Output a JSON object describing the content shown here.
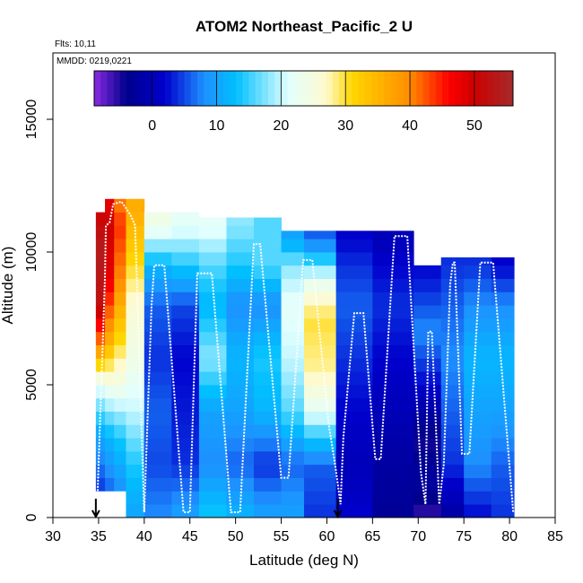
{
  "chart_data": {
    "type": "heatmap",
    "title": "ATOM2 Northeast_Pacific_2 U",
    "flights_label": "Flts: 10,11",
    "dates_label": "MMDD: 0219,0221",
    "xlabel": "Latitude (deg N)",
    "ylabel": "Altitude (m)",
    "xlim": [
      30,
      85
    ],
    "ylim": [
      0,
      17500
    ],
    "xticks": [
      30,
      35,
      40,
      45,
      50,
      55,
      60,
      65,
      70,
      75,
      80,
      85
    ],
    "yticks": [
      0,
      5000,
      10000,
      15000
    ],
    "colorbar": {
      "range": [
        -9,
        56
      ],
      "ticks": [
        0,
        10,
        20,
        30,
        40,
        50
      ],
      "colors": [
        "#8a2be2",
        "#00008b",
        "#0000cd",
        "#1e90ff",
        "#00bfff",
        "#e0ffff",
        "#fffacd",
        "#ffd700",
        "#ff8c00",
        "#ff0000",
        "#cd0000",
        "#a52a2a"
      ],
      "stops": [
        -9,
        -4,
        2,
        8,
        13,
        21,
        27,
        31,
        40,
        46,
        50,
        56
      ]
    },
    "arrows_latitude": [
      34.7,
      61.2
    ],
    "columns": [
      {
        "lat": [
          34.7,
          35.7
        ],
        "alt": [
          1000,
          11500
        ],
        "key": [
          [
            1000,
            4
          ],
          [
            3000,
            10
          ],
          [
            5000,
            22
          ],
          [
            6500,
            40
          ],
          [
            8000,
            52
          ],
          [
            10000,
            54
          ],
          [
            11500,
            50
          ]
        ]
      },
      {
        "lat": [
          35.7,
          36.7
        ],
        "alt": [
          1000,
          12000
        ],
        "key": [
          [
            1000,
            6
          ],
          [
            3000,
            12
          ],
          [
            5000,
            24
          ],
          [
            7000,
            38
          ],
          [
            9000,
            48
          ],
          [
            11000,
            50
          ],
          [
            12000,
            48
          ]
        ]
      },
      {
        "lat": [
          36.7,
          38.0
        ],
        "alt": [
          1000,
          12000
        ],
        "key": [
          [
            1000,
            8
          ],
          [
            3000,
            14
          ],
          [
            5000,
            24
          ],
          [
            7000,
            32
          ],
          [
            9000,
            40
          ],
          [
            11000,
            44
          ],
          [
            12000,
            40
          ]
        ]
      },
      {
        "lat": [
          38.0,
          40.0
        ],
        "alt": [
          0,
          12000
        ],
        "key": [
          [
            0,
            10
          ],
          [
            2000,
            14
          ],
          [
            4000,
            20
          ],
          [
            6000,
            24
          ],
          [
            8000,
            26
          ],
          [
            10000,
            32
          ],
          [
            11500,
            36
          ]
        ]
      },
      {
        "lat": [
          40.0,
          43.0
        ],
        "alt": [
          0,
          11500
        ],
        "key": [
          [
            0,
            8
          ],
          [
            2000,
            5
          ],
          [
            4000,
            6
          ],
          [
            6000,
            4
          ],
          [
            8000,
            6
          ],
          [
            9500,
            12
          ],
          [
            11000,
            24
          ]
        ]
      },
      {
        "lat": [
          43.0,
          46.0
        ],
        "alt": [
          0,
          11500
        ],
        "key": [
          [
            0,
            10
          ],
          [
            2000,
            4
          ],
          [
            4000,
            3
          ],
          [
            6000,
            2
          ],
          [
            8000,
            5
          ],
          [
            9500,
            14
          ],
          [
            11000,
            22
          ]
        ]
      },
      {
        "lat": [
          46.0,
          49.0
        ],
        "alt": [
          0,
          11300
        ],
        "key": [
          [
            0,
            14
          ],
          [
            2000,
            8
          ],
          [
            4000,
            10
          ],
          [
            6000,
            18
          ],
          [
            8000,
            12
          ],
          [
            9500,
            16
          ],
          [
            11000,
            22
          ]
        ]
      },
      {
        "lat": [
          49.0,
          52.0
        ],
        "alt": [
          0,
          11300
        ],
        "key": [
          [
            0,
            12
          ],
          [
            2000,
            6
          ],
          [
            4000,
            10
          ],
          [
            6000,
            12
          ],
          [
            8000,
            8
          ],
          [
            9500,
            14
          ],
          [
            11000,
            18
          ]
        ]
      },
      {
        "lat": [
          52.0,
          55.0
        ],
        "alt": [
          0,
          11300
        ],
        "key": [
          [
            0,
            10
          ],
          [
            2000,
            4
          ],
          [
            4000,
            12
          ],
          [
            6000,
            14
          ],
          [
            8000,
            8
          ],
          [
            9500,
            16
          ],
          [
            11000,
            16
          ]
        ]
      },
      {
        "lat": [
          55.0,
          57.5
        ],
        "alt": [
          0,
          10800
        ],
        "key": [
          [
            0,
            10
          ],
          [
            2000,
            6
          ],
          [
            4000,
            16
          ],
          [
            6000,
            20
          ],
          [
            8000,
            22
          ],
          [
            9500,
            18
          ],
          [
            10500,
            10
          ]
        ]
      },
      {
        "lat": [
          57.5,
          61.0
        ],
        "alt": [
          0,
          10800
        ],
        "key": [
          [
            0,
            4
          ],
          [
            2000,
            6
          ],
          [
            4000,
            22
          ],
          [
            5500,
            28
          ],
          [
            7500,
            30
          ],
          [
            9000,
            22
          ],
          [
            10500,
            6
          ]
        ]
      },
      {
        "lat": [
          61.0,
          65.0
        ],
        "alt": [
          0,
          10800
        ],
        "key": [
          [
            0,
            2
          ],
          [
            2000,
            0
          ],
          [
            4000,
            2
          ],
          [
            6000,
            4
          ],
          [
            8000,
            6
          ],
          [
            9500,
            4
          ],
          [
            10500,
            2
          ]
        ]
      },
      {
        "lat": [
          65.0,
          69.5
        ],
        "alt": [
          0,
          10800
        ],
        "key": [
          [
            0,
            -3
          ],
          [
            2000,
            -2
          ],
          [
            4000,
            0
          ],
          [
            6000,
            2
          ],
          [
            8000,
            4
          ],
          [
            9500,
            2
          ],
          [
            10500,
            0
          ]
        ]
      },
      {
        "lat": [
          69.5,
          72.5
        ],
        "alt": [
          0,
          9500
        ],
        "key": [
          [
            0,
            -6
          ],
          [
            1500,
            -2
          ],
          [
            3000,
            -5
          ],
          [
            5000,
            2
          ],
          [
            7000,
            8
          ],
          [
            8500,
            4
          ],
          [
            9500,
            2
          ]
        ]
      },
      {
        "lat": [
          72.5,
          75.0
        ],
        "alt": [
          0,
          9800
        ],
        "key": [
          [
            0,
            -2
          ],
          [
            2000,
            4
          ],
          [
            4000,
            6
          ],
          [
            6000,
            8
          ],
          [
            8000,
            6
          ],
          [
            9500,
            4
          ]
        ]
      },
      {
        "lat": [
          75.0,
          78.0
        ],
        "alt": [
          0,
          9800
        ],
        "key": [
          [
            0,
            2
          ],
          [
            2000,
            8
          ],
          [
            4000,
            10
          ],
          [
            6000,
            12
          ],
          [
            8000,
            8
          ],
          [
            9500,
            4
          ]
        ]
      },
      {
        "lat": [
          78.0,
          80.5
        ],
        "alt": [
          0,
          9800
        ],
        "key": [
          [
            0,
            4
          ],
          [
            2000,
            6
          ],
          [
            4000,
            10
          ],
          [
            6000,
            12
          ],
          [
            8000,
            8
          ],
          [
            9500,
            2
          ]
        ]
      }
    ],
    "flight_track": [
      [
        34.9,
        1000
      ],
      [
        35.1,
        3000
      ],
      [
        35.4,
        6000
      ],
      [
        35.7,
        9000
      ],
      [
        35.8,
        11000
      ],
      [
        36.2,
        11100
      ],
      [
        36.6,
        11800
      ],
      [
        37.5,
        11900
      ],
      [
        38.5,
        11400
      ],
      [
        39.0,
        11000
      ],
      [
        40.0,
        200
      ],
      [
        40.8,
        8000
      ],
      [
        41.1,
        9500
      ],
      [
        42.2,
        9500
      ],
      [
        44.3,
        200
      ],
      [
        45.0,
        200
      ],
      [
        45.8,
        9200
      ],
      [
        47.4,
        9200
      ],
      [
        49.5,
        200
      ],
      [
        50.5,
        200
      ],
      [
        52.0,
        10300
      ],
      [
        52.7,
        10300
      ],
      [
        55.0,
        1500
      ],
      [
        55.8,
        1500
      ],
      [
        57.4,
        9700
      ],
      [
        58.4,
        9700
      ],
      [
        60.2,
        3500
      ],
      [
        60.9,
        2000
      ],
      [
        61.5,
        500
      ],
      [
        61.8,
        3000
      ],
      [
        63.0,
        7700
      ],
      [
        64.0,
        7700
      ],
      [
        65.3,
        2200
      ],
      [
        65.9,
        2200
      ],
      [
        67.4,
        10600
      ],
      [
        68.8,
        10600
      ],
      [
        70.3,
        1700
      ],
      [
        70.8,
        500
      ],
      [
        71.1,
        7000
      ],
      [
        71.5,
        7000
      ],
      [
        72.3,
        500
      ],
      [
        72.8,
        2000
      ],
      [
        73.5,
        8800
      ],
      [
        73.8,
        9600
      ],
      [
        74.0,
        9600
      ],
      [
        74.8,
        2400
      ],
      [
        75.6,
        2400
      ],
      [
        76.8,
        9600
      ],
      [
        78.2,
        9600
      ],
      [
        80.4,
        200
      ]
    ]
  }
}
